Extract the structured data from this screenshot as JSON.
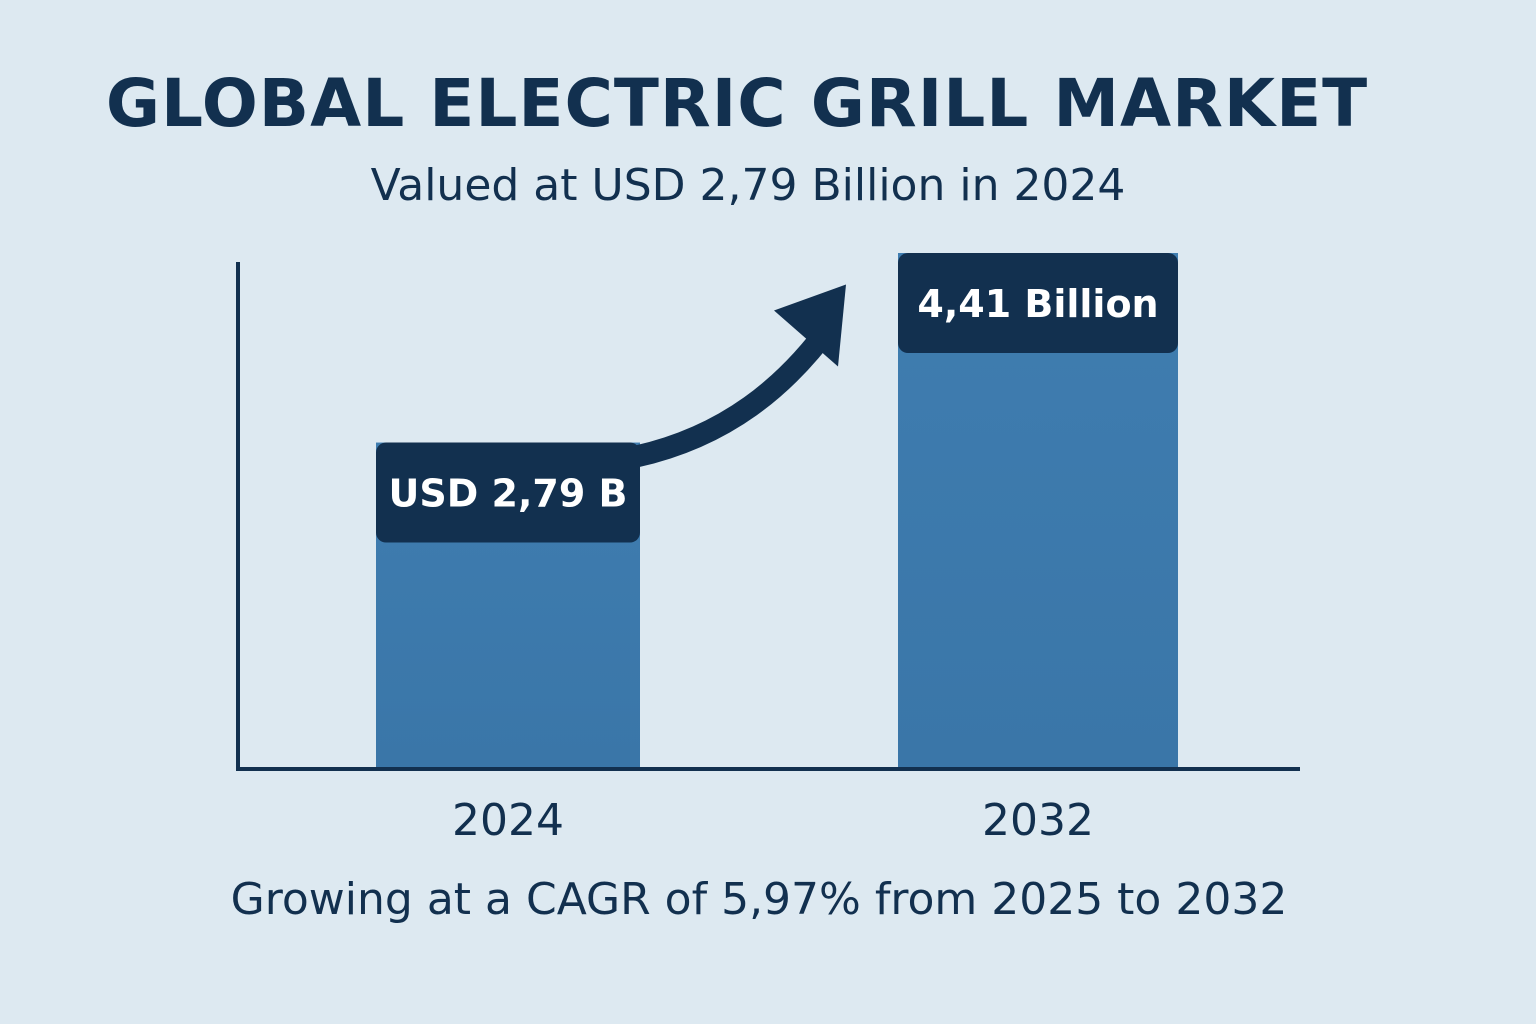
{
  "header": {
    "title": "GLOBAL ELECTRIC GRILL MARKET",
    "subtitle": "Valued at USD 2,79 Billion in 2024"
  },
  "footer": {
    "text": "Growing at a CAGR of 5,97% from 2025 to 2032"
  },
  "colors": {
    "background": "#dde9f1",
    "bar": "#3d7aae",
    "label_box": "#12304f",
    "axis": "#12304f",
    "text": "#12304f"
  },
  "chart_data": {
    "type": "bar",
    "title": "GLOBAL ELECTRIC GRILL MARKET",
    "subtitle": "Valued at USD 2,79 Billion in 2024",
    "categories": [
      "2024",
      "2032"
    ],
    "values": [
      2.79,
      4.41
    ],
    "data_labels": [
      "USD 2,79 B",
      "4,41 Billion"
    ],
    "xlabel": "",
    "ylabel": "",
    "grid": false,
    "legend": "none",
    "annotations": [
      "growth arrow from 2024 bar toward 2032 bar"
    ]
  }
}
